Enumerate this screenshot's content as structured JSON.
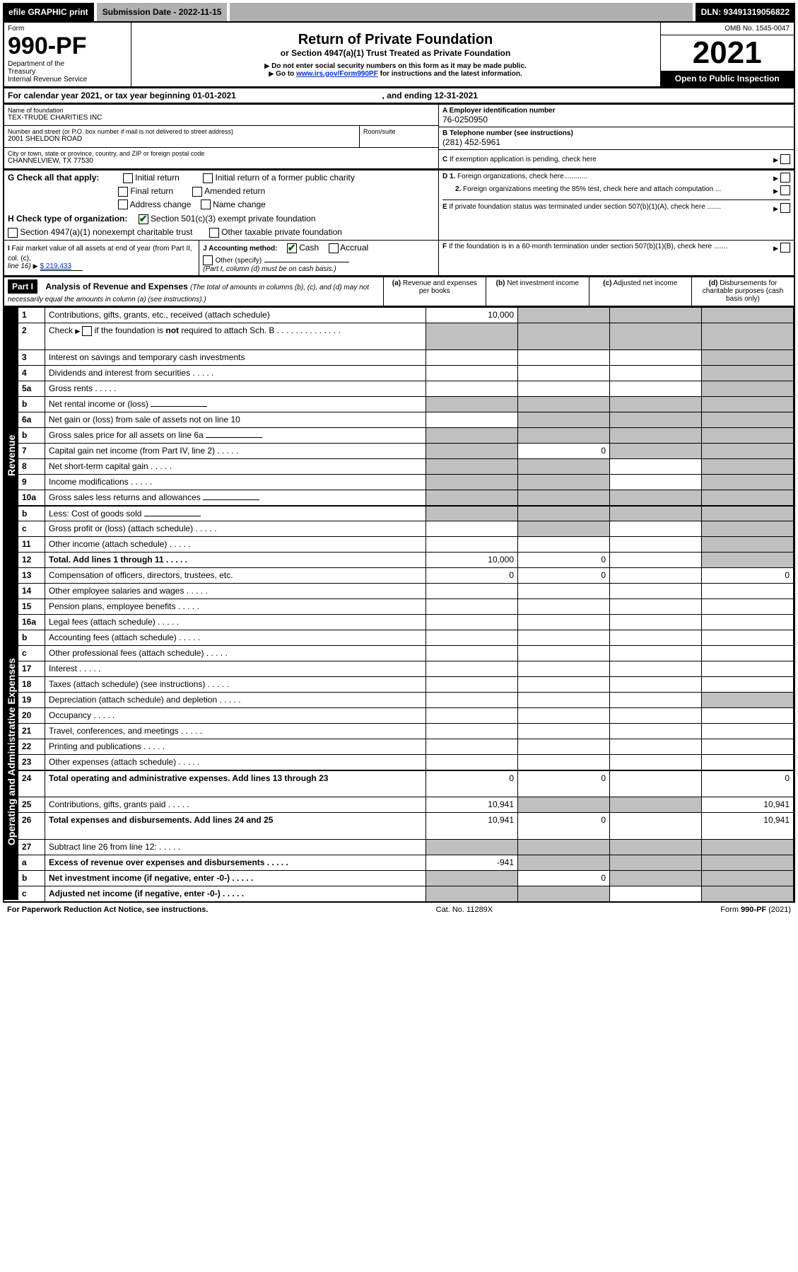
{
  "topbar": {
    "efile": "efile GRAPHIC print",
    "subdate_label": "Submission Date - 2022-11-15",
    "dln": "DLN: 93491319056822"
  },
  "header": {
    "form_word": "Form",
    "form_no": "990-PF",
    "dept1": "Department of the",
    "dept2": "Treasury",
    "dept3": "Internal Revenue Service",
    "title": "Return of Private Foundation",
    "subtitle": "or Section 4947(a)(1) Trust Treated as Private Foundation",
    "note1": "Do not enter social security numbers on this form as it may be made public.",
    "note2_pre": "Go to ",
    "note2_link": "www.irs.gov/Form990PF",
    "note2_post": " for instructions and the latest information.",
    "omb": "OMB No. 1545-0047",
    "year": "2021",
    "open": "Open to Public Inspection"
  },
  "calendar": {
    "pre": "For calendar year 2021, or tax year beginning ",
    "begin": "01-01-2021",
    "mid": ", and ending ",
    "end": "12-31-2021"
  },
  "id": {
    "name_lbl": "Name of foundation",
    "name": "TEX-TRUDE CHARITIES INC",
    "addr_lbl": "Number and street (or P.O. box number if mail is not delivered to street address)",
    "addr": "2001 SHELDON ROAD",
    "room_lbl": "Room/suite",
    "city_lbl": "City or town, state or province, country, and ZIP or foreign postal code",
    "city": "CHANNELVIEW, TX  77530",
    "A_lbl": "A Employer identification number",
    "A_val": "76-0250950",
    "B_lbl": "B Telephone number (see instructions)",
    "B_val": "(281) 452-5961",
    "C_lbl": "C If exemption application is pending, check here",
    "D1": "D 1. Foreign organizations, check here............",
    "D2": "2. Foreign organizations meeting the 85% test, check here and attach computation ...",
    "E_lbl": "E  If private foundation status was terminated under section 507(b)(1)(A), check here .......",
    "F_lbl": "F  If the foundation is in a 60-month termination under section 507(b)(1)(B), check here .......",
    "G_lbl": "G Check all that apply:",
    "G_opts": [
      "Initial return",
      "Initial return of a former public charity",
      "Final return",
      "Amended return",
      "Address change",
      "Name change"
    ],
    "H_lbl": "H Check type of organization:",
    "H1": "Section 501(c)(3) exempt private foundation",
    "H2": "Section 4947(a)(1) nonexempt charitable trust",
    "H3": "Other taxable private foundation",
    "I_lbl": "I Fair market value of all assets at end of year (from Part II, col. (c), ",
    "I_line": "line 16)",
    "I_val": "$  219,433",
    "J_lbl": "J Accounting method:",
    "J_cash": "Cash",
    "J_accrual": "Accrual",
    "J_other": "Other (specify)",
    "J_note": "(Part I, column (d) must be on cash basis.)"
  },
  "partI": {
    "hdr": "Part I",
    "title": "Analysis of Revenue and Expenses",
    "title_note": "(The total of amounts in columns (b), (c), and (d) may not necessarily equal the amounts in column (a) (see instructions).)",
    "col_a": "Revenue and expenses per books",
    "col_b": "Net investment income",
    "col_c": "Adjusted net income",
    "col_d": "Disbursements for charitable purposes (cash basis only)",
    "col_a_pre": "(a)",
    "col_b_pre": "(b)",
    "col_c_pre": "(c)",
    "col_d_pre": "(d)"
  },
  "sections": {
    "revenue": "Revenue",
    "opex": "Operating and Administrative Expenses"
  },
  "rows": [
    {
      "n": "1",
      "t": "Contributions, gifts, grants, etc., received (attach schedule)",
      "a": "10,000",
      "b": "",
      "c": "",
      "d": "",
      "grey": [
        "b",
        "c",
        "d"
      ]
    },
    {
      "n": "2",
      "t": "Check ▶ ☐ if the foundation is not required to attach Sch. B",
      "a": "",
      "b": "",
      "c": "",
      "d": "",
      "grey": [
        "a",
        "b",
        "c",
        "d"
      ],
      "tall": true,
      "notreq": true
    },
    {
      "n": "3",
      "t": "Interest on savings and temporary cash investments",
      "a": "",
      "b": "",
      "c": "",
      "d": "",
      "grey": [
        "d"
      ]
    },
    {
      "n": "4",
      "t": "Dividends and interest from securities",
      "a": "",
      "b": "",
      "c": "",
      "d": "",
      "grey": [
        "d"
      ]
    },
    {
      "n": "5a",
      "t": "Gross rents",
      "a": "",
      "b": "",
      "c": "",
      "d": "",
      "grey": [
        "d"
      ]
    },
    {
      "n": "b",
      "t": "Net rental income or (loss)",
      "a": "",
      "b": "",
      "c": "",
      "d": "",
      "grey": [
        "a",
        "b",
        "c",
        "d"
      ],
      "inline": true
    },
    {
      "n": "6a",
      "t": "Net gain or (loss) from sale of assets not on line 10",
      "a": "",
      "b": "",
      "c": "",
      "d": "",
      "grey": [
        "b",
        "c",
        "d"
      ]
    },
    {
      "n": "b",
      "t": "Gross sales price for all assets on line 6a",
      "a": "",
      "b": "",
      "c": "",
      "d": "",
      "grey": [
        "a",
        "b",
        "c",
        "d"
      ],
      "inline": true
    },
    {
      "n": "7",
      "t": "Capital gain net income (from Part IV, line 2)",
      "a": "",
      "b": "0",
      "c": "",
      "d": "",
      "grey": [
        "a",
        "c",
        "d"
      ]
    },
    {
      "n": "8",
      "t": "Net short-term capital gain",
      "a": "",
      "b": "",
      "c": "",
      "d": "",
      "grey": [
        "a",
        "b",
        "d"
      ]
    },
    {
      "n": "9",
      "t": "Income modifications",
      "a": "",
      "b": "",
      "c": "",
      "d": "",
      "grey": [
        "a",
        "b",
        "d"
      ]
    },
    {
      "n": "10a",
      "t": "Gross sales less returns and allowances",
      "a": "",
      "b": "",
      "c": "",
      "d": "",
      "grey": [
        "a",
        "b",
        "c",
        "d"
      ],
      "inline": true
    },
    {
      "n": "b",
      "t": "Less: Cost of goods sold",
      "a": "",
      "b": "",
      "c": "",
      "d": "",
      "grey": [
        "a",
        "b",
        "c",
        "d"
      ],
      "inline": true
    },
    {
      "n": "c",
      "t": "Gross profit or (loss) (attach schedule)",
      "a": "",
      "b": "",
      "c": "",
      "d": "",
      "grey": [
        "b",
        "d"
      ]
    },
    {
      "n": "11",
      "t": "Other income (attach schedule)",
      "a": "",
      "b": "",
      "c": "",
      "d": "",
      "grey": [
        "d"
      ]
    },
    {
      "n": "12",
      "t": "Total. Add lines 1 through 11",
      "a": "10,000",
      "b": "0",
      "c": "",
      "d": "",
      "grey": [
        "d"
      ],
      "bold": true
    },
    {
      "n": "13",
      "t": "Compensation of officers, directors, trustees, etc.",
      "a": "0",
      "b": "0",
      "c": "",
      "d": "0"
    },
    {
      "n": "14",
      "t": "Other employee salaries and wages",
      "a": "",
      "b": "",
      "c": "",
      "d": ""
    },
    {
      "n": "15",
      "t": "Pension plans, employee benefits",
      "a": "",
      "b": "",
      "c": "",
      "d": ""
    },
    {
      "n": "16a",
      "t": "Legal fees (attach schedule)",
      "a": "",
      "b": "",
      "c": "",
      "d": ""
    },
    {
      "n": "b",
      "t": "Accounting fees (attach schedule)",
      "a": "",
      "b": "",
      "c": "",
      "d": ""
    },
    {
      "n": "c",
      "t": "Other professional fees (attach schedule)",
      "a": "",
      "b": "",
      "c": "",
      "d": ""
    },
    {
      "n": "17",
      "t": "Interest",
      "a": "",
      "b": "",
      "c": "",
      "d": ""
    },
    {
      "n": "18",
      "t": "Taxes (attach schedule) (see instructions)",
      "a": "",
      "b": "",
      "c": "",
      "d": ""
    },
    {
      "n": "19",
      "t": "Depreciation (attach schedule) and depletion",
      "a": "",
      "b": "",
      "c": "",
      "d": "",
      "grey": [
        "d"
      ]
    },
    {
      "n": "20",
      "t": "Occupancy",
      "a": "",
      "b": "",
      "c": "",
      "d": ""
    },
    {
      "n": "21",
      "t": "Travel, conferences, and meetings",
      "a": "",
      "b": "",
      "c": "",
      "d": ""
    },
    {
      "n": "22",
      "t": "Printing and publications",
      "a": "",
      "b": "",
      "c": "",
      "d": ""
    },
    {
      "n": "23",
      "t": "Other expenses (attach schedule)",
      "a": "",
      "b": "",
      "c": "",
      "d": ""
    },
    {
      "n": "24",
      "t": "Total operating and administrative expenses. Add lines 13 through 23",
      "a": "0",
      "b": "0",
      "c": "",
      "d": "0",
      "bold": true,
      "tall": true
    },
    {
      "n": "25",
      "t": "Contributions, gifts, grants paid",
      "a": "10,941",
      "b": "",
      "c": "",
      "d": "10,941",
      "grey": [
        "b",
        "c"
      ]
    },
    {
      "n": "26",
      "t": "Total expenses and disbursements. Add lines 24 and 25",
      "a": "10,941",
      "b": "0",
      "c": "",
      "d": "10,941",
      "bold": true,
      "tall": true
    },
    {
      "n": "27",
      "t": "Subtract line 26 from line 12:",
      "a": "",
      "b": "",
      "c": "",
      "d": "",
      "grey": [
        "a",
        "b",
        "c",
        "d"
      ]
    },
    {
      "n": "a",
      "t": "Excess of revenue over expenses and disbursements",
      "a": "-941",
      "b": "",
      "c": "",
      "d": "",
      "bold": true,
      "grey": [
        "b",
        "c",
        "d"
      ]
    },
    {
      "n": "b",
      "t": "Net investment income (if negative, enter -0-)",
      "a": "",
      "b": "0",
      "c": "",
      "d": "",
      "bold": true,
      "grey": [
        "a",
        "c",
        "d"
      ]
    },
    {
      "n": "c",
      "t": "Adjusted net income (if negative, enter -0-)",
      "a": "",
      "b": "",
      "c": "",
      "d": "",
      "bold": true,
      "grey": [
        "a",
        "b",
        "d"
      ]
    }
  ],
  "footer": {
    "left": "For Paperwork Reduction Act Notice, see instructions.",
    "mid": "Cat. No. 11289X",
    "right": "Form 990-PF (2021)"
  }
}
